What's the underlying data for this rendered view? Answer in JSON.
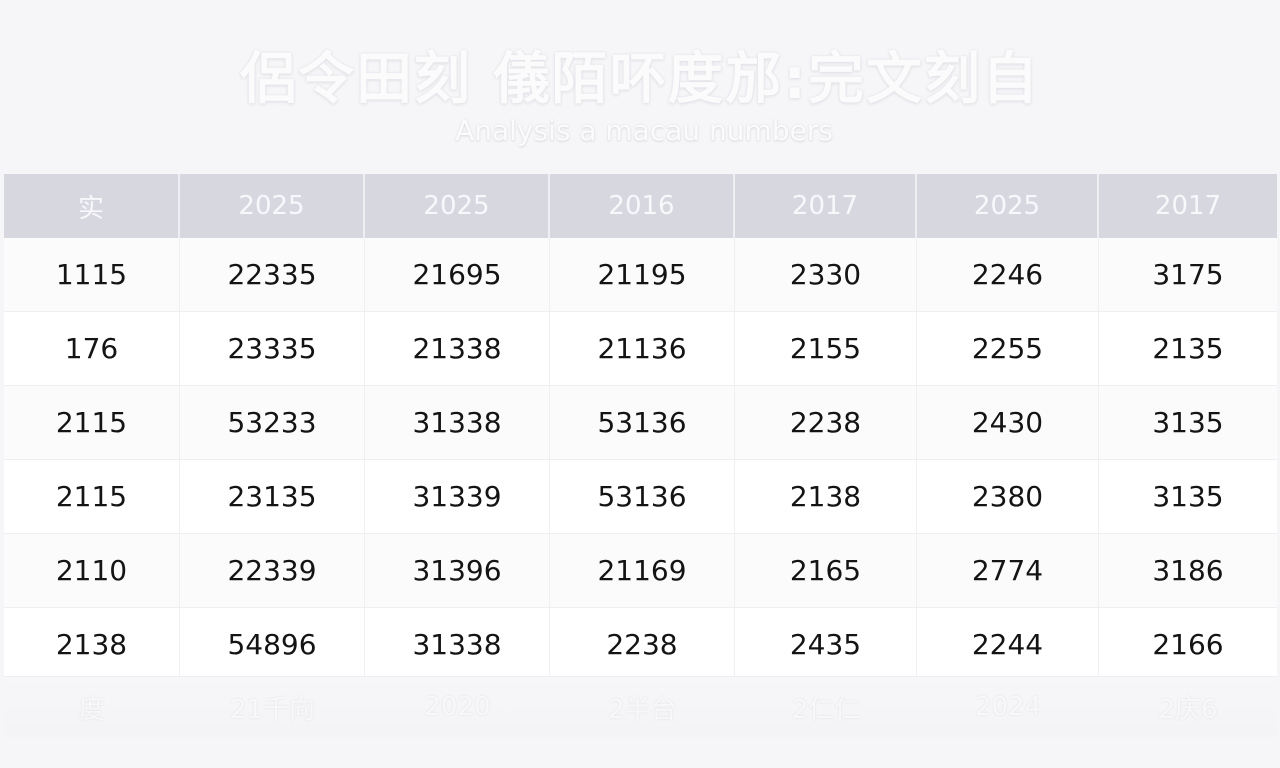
{
  "title": "侶令田刻 儀陌吥度邡:完文刻自",
  "subtitle": "Analysis a macau numbers",
  "table": {
    "headers": [
      "实",
      "2025",
      "2025",
      "2016",
      "2017",
      "2025",
      "2017"
    ],
    "rows": [
      [
        "1115",
        "22335",
        "21695",
        "21195",
        "2330",
        "2246",
        "3175"
      ],
      [
        "176",
        "23335",
        "21338",
        "21136",
        "2155",
        "2255",
        "2135"
      ],
      [
        "2115",
        "53233",
        "31338",
        "53136",
        "2238",
        "2430",
        "3135"
      ],
      [
        "2115",
        "23135",
        "31339",
        "53136",
        "2138",
        "2380",
        "3135"
      ],
      [
        "2110",
        "22339",
        "31396",
        "21169",
        "2165",
        "2774",
        "3186"
      ],
      [
        "2138",
        "54896",
        "31338",
        "2238",
        "2435",
        "2244",
        "2166"
      ]
    ],
    "footer": [
      "度",
      "21千向",
      "2020",
      "2半台",
      "2仁仁",
      "2024",
      "2庆6"
    ]
  }
}
